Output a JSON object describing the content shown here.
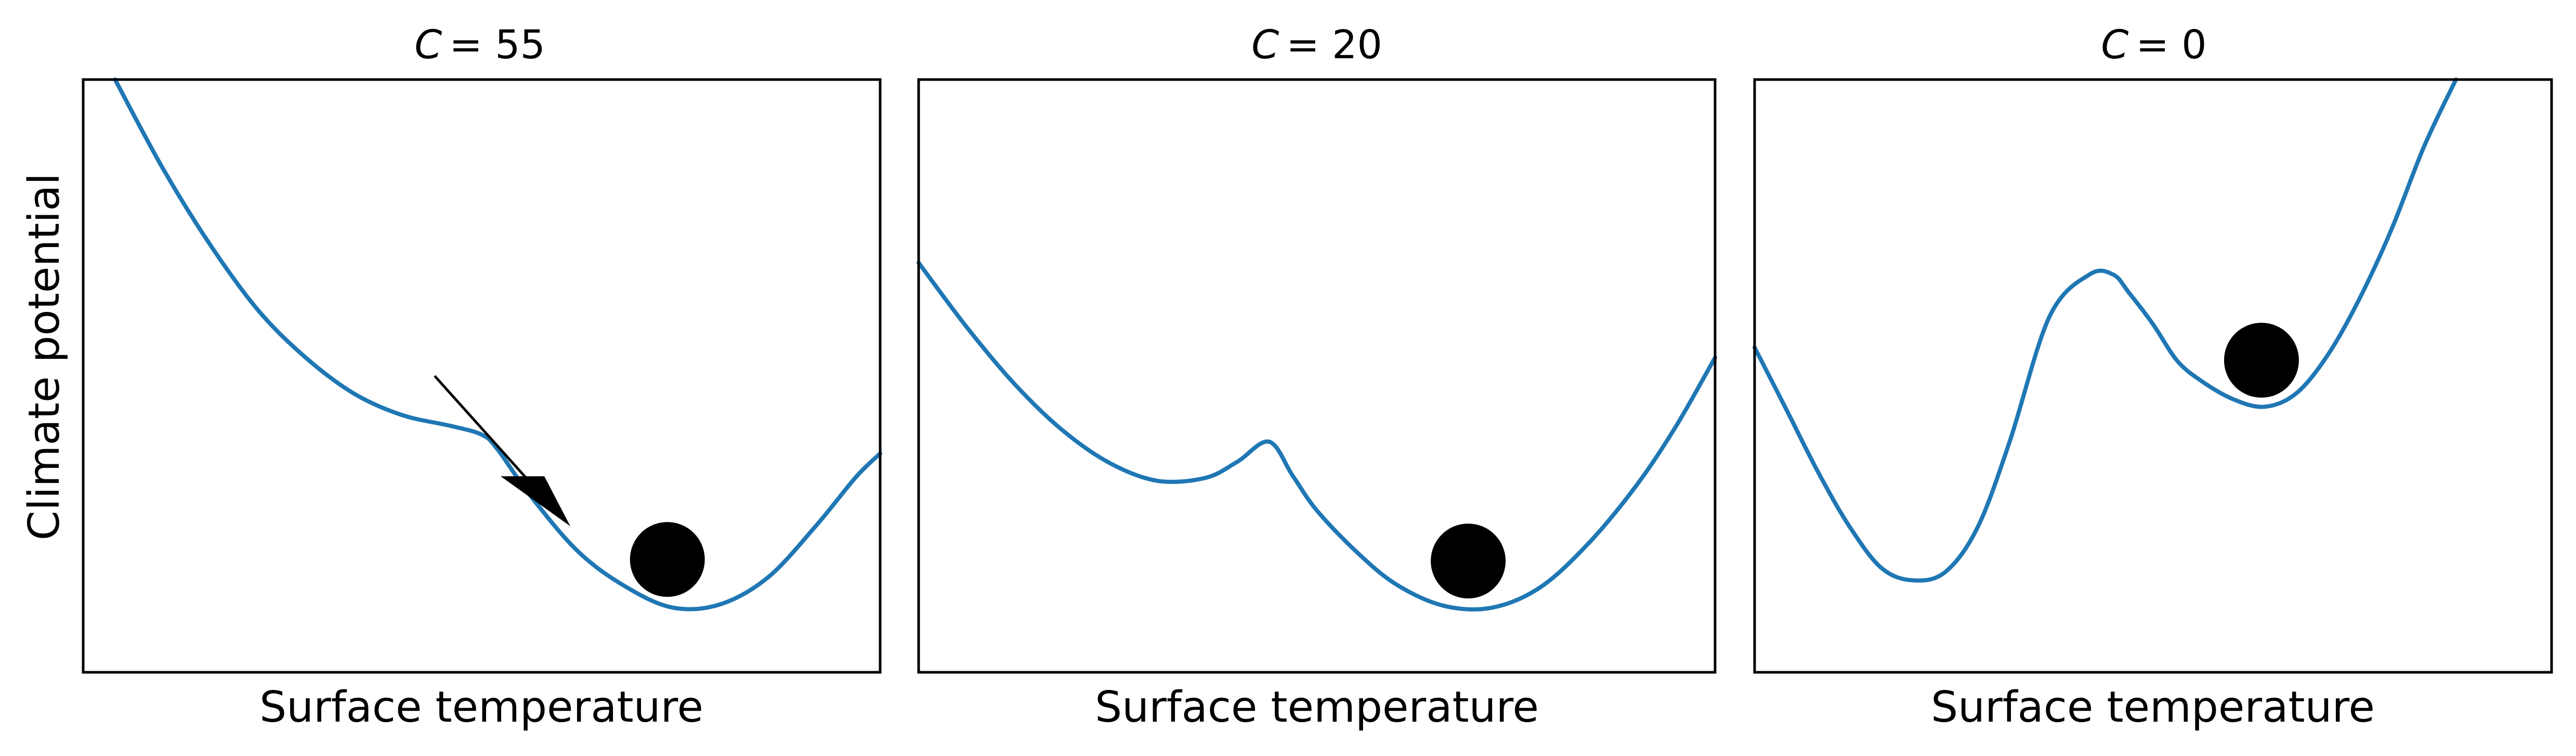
{
  "chart_data": [
    {
      "type": "line",
      "title_var": "C",
      "title_value": "= 55",
      "xlabel": "Surface temperature",
      "ylabel": "Climate potential",
      "ticks": "none",
      "grid": false,
      "line_color": "#1f77b4",
      "ball_color": "#000000",
      "ball_x": 0.733,
      "has_arrow": true,
      "series": [
        {
          "x": [
            0.04,
            0.1,
            0.16,
            0.22,
            0.28,
            0.34,
            0.4,
            0.46,
            0.5,
            0.52,
            0.56,
            0.62,
            0.68,
            0.74,
            0.8,
            0.86,
            0.92,
            0.97,
            1.0
          ],
          "y": [
            1.0,
            0.85,
            0.72,
            0.61,
            0.53,
            0.47,
            0.434,
            0.416,
            0.401,
            0.376,
            0.3,
            0.205,
            0.145,
            0.109,
            0.115,
            0.161,
            0.248,
            0.33,
            0.369
          ]
        }
      ]
    },
    {
      "type": "line",
      "title_var": "C",
      "title_value": "= 20",
      "xlabel": "Surface temperature",
      "ticks": "none",
      "grid": false,
      "line_color": "#1f77b4",
      "ball_color": "#000000",
      "ball_x": 0.69,
      "has_arrow": false,
      "series": [
        {
          "x": [
            0.0,
            0.06,
            0.12,
            0.18,
            0.24,
            0.3,
            0.36,
            0.4,
            0.44,
            0.47,
            0.5,
            0.55,
            0.6,
            0.66,
            0.72,
            0.78,
            0.84,
            0.9,
            0.95,
            1.0
          ],
          "y": [
            0.691,
            0.583,
            0.487,
            0.409,
            0.353,
            0.323,
            0.328,
            0.355,
            0.389,
            0.331,
            0.273,
            0.203,
            0.148,
            0.112,
            0.109,
            0.143,
            0.216,
            0.313,
            0.413,
            0.531
          ]
        }
      ]
    },
    {
      "type": "line",
      "title_var": "C",
      "title_value": "= 0",
      "xlabel": "Surface temperature",
      "ticks": "none",
      "grid": false,
      "line_color": "#1f77b4",
      "ball_color": "#000000",
      "ball_x": 0.636,
      "has_arrow": false,
      "series": [
        {
          "x": [
            0.0,
            0.04,
            0.08,
            0.12,
            0.16,
            0.2,
            0.24,
            0.28,
            0.32,
            0.37,
            0.42,
            0.45,
            0.47,
            0.5,
            0.53,
            0.56,
            0.6,
            0.64,
            0.68,
            0.72,
            0.76,
            0.8,
            0.84,
            0.88
          ],
          "y": [
            0.548,
            0.443,
            0.337,
            0.244,
            0.175,
            0.155,
            0.17,
            0.245,
            0.389,
            0.6,
            0.671,
            0.671,
            0.64,
            0.587,
            0.526,
            0.492,
            0.461,
            0.448,
            0.471,
            0.537,
            0.633,
            0.75,
            0.887,
            1.0
          ]
        }
      ]
    }
  ]
}
